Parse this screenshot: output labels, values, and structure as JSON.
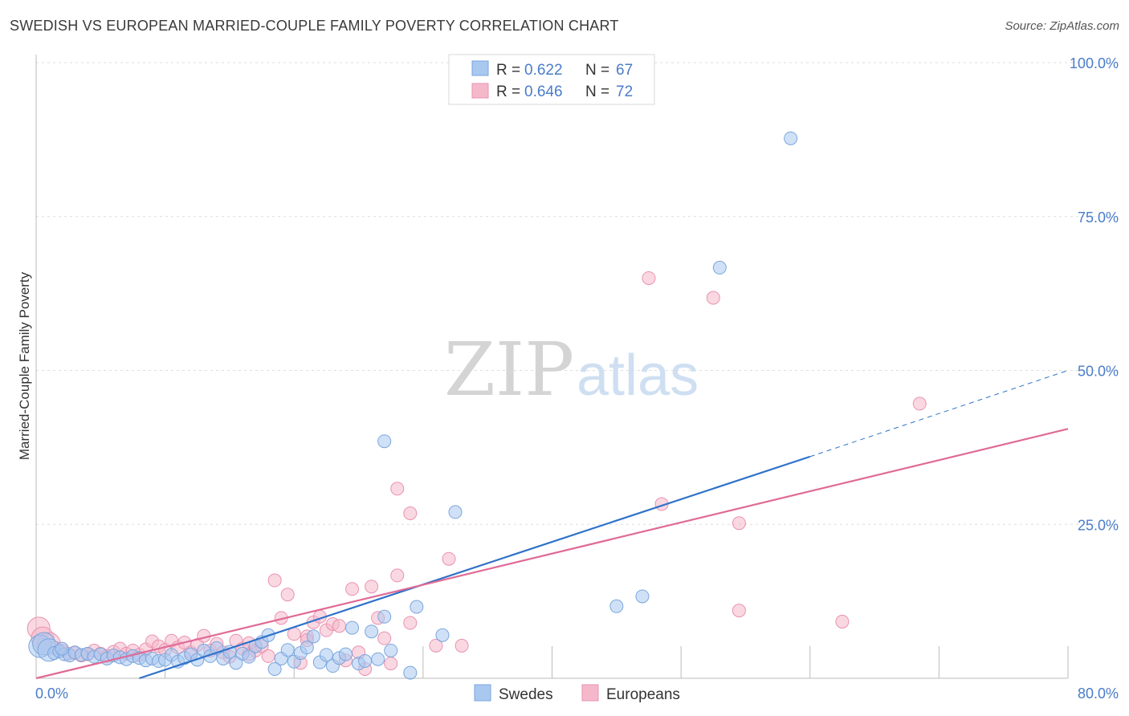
{
  "title": "SWEDISH VS EUROPEAN MARRIED-COUPLE FAMILY POVERTY CORRELATION CHART",
  "source": "Source: ZipAtlas.com",
  "watermark": {
    "zip": "ZIP",
    "atlas": "atlas"
  },
  "legend": {
    "swedes": {
      "r_label": "R =",
      "r_value": "0.622",
      "n_label": "N =",
      "n_value": "67"
    },
    "europeans": {
      "r_label": "R =",
      "r_value": "0.646",
      "n_label": "N =",
      "n_value": "72"
    }
  },
  "colors": {
    "swedes": "#a9c8f0",
    "swedes_line": "#2f72c9",
    "europeans": "#f5b8cb",
    "europeans_line": "#e06a96",
    "tick": "#4a7cc9"
  },
  "chart_data": {
    "type": "scatter",
    "title": "SWEDISH VS EUROPEAN MARRIED-COUPLE FAMILY POVERTY CORRELATION CHART",
    "xlabel": "",
    "ylabel": "Married-Couple Family Poverty",
    "xlim": [
      0,
      80
    ],
    "ylim": [
      0,
      100
    ],
    "x_tick_labels": [
      "0.0%",
      "80.0%"
    ],
    "y_ticks": [
      25,
      50,
      75,
      100
    ],
    "y_tick_labels": [
      "25.0%",
      "50.0%",
      "75.0%",
      "100.0%"
    ],
    "grid": true,
    "legend_position": "top-center",
    "series": [
      {
        "name": "Swedes",
        "points": [
          [
            0.3,
            5.2
          ],
          [
            0.6,
            5.6
          ],
          [
            1.0,
            4.6
          ],
          [
            1.4,
            4.1
          ],
          [
            1.8,
            4.4
          ],
          [
            2.2,
            3.9
          ],
          [
            2.6,
            3.7
          ],
          [
            3.0,
            4.2
          ],
          [
            3.5,
            3.8
          ],
          [
            4.0,
            4.0
          ],
          [
            4.5,
            3.5
          ],
          [
            5.0,
            3.9
          ],
          [
            5.5,
            3.2
          ],
          [
            6.0,
            3.7
          ],
          [
            6.5,
            3.4
          ],
          [
            7.0,
            3.1
          ],
          [
            7.5,
            3.6
          ],
          [
            8.0,
            3.3
          ],
          [
            8.5,
            2.9
          ],
          [
            9.0,
            3.2
          ],
          [
            9.5,
            2.8
          ],
          [
            10.0,
            3.0
          ],
          [
            10.5,
            3.8
          ],
          [
            11.0,
            2.7
          ],
          [
            11.5,
            3.3
          ],
          [
            12.0,
            3.9
          ],
          [
            12.5,
            3.0
          ],
          [
            13.0,
            4.5
          ],
          [
            13.5,
            3.6
          ],
          [
            14.0,
            4.9
          ],
          [
            14.5,
            3.2
          ],
          [
            15.0,
            4.3
          ],
          [
            15.5,
            2.5
          ],
          [
            16.0,
            4.0
          ],
          [
            16.5,
            3.5
          ],
          [
            17.0,
            5.2
          ],
          [
            17.5,
            5.9
          ],
          [
            18.0,
            7.0
          ],
          [
            18.5,
            1.5
          ],
          [
            19.0,
            3.2
          ],
          [
            19.5,
            4.6
          ],
          [
            20.0,
            2.7
          ],
          [
            20.5,
            4.1
          ],
          [
            21.0,
            5.0
          ],
          [
            21.5,
            6.8
          ],
          [
            22.0,
            2.6
          ],
          [
            22.5,
            3.8
          ],
          [
            23.0,
            2.0
          ],
          [
            23.5,
            3.3
          ],
          [
            24.0,
            3.9
          ],
          [
            24.5,
            8.2
          ],
          [
            25.0,
            2.4
          ],
          [
            25.5,
            2.8
          ],
          [
            26.0,
            7.6
          ],
          [
            26.5,
            3.1
          ],
          [
            27.0,
            10.0
          ],
          [
            27.5,
            4.5
          ],
          [
            29.0,
            0.9
          ],
          [
            29.5,
            11.6
          ],
          [
            31.5,
            7.0
          ],
          [
            32.5,
            27.0
          ],
          [
            27.0,
            38.5
          ],
          [
            45.0,
            11.7
          ],
          [
            47.0,
            13.3
          ],
          [
            53.0,
            66.7
          ],
          [
            58.5,
            87.7
          ],
          [
            2.0,
            4.8
          ]
        ]
      },
      {
        "name": "Europeans",
        "points": [
          [
            0.2,
            8.1
          ],
          [
            0.5,
            6.5
          ],
          [
            1.0,
            5.6
          ],
          [
            1.5,
            4.9
          ],
          [
            2.0,
            4.5
          ],
          [
            2.5,
            4.0
          ],
          [
            3.0,
            4.1
          ],
          [
            3.5,
            3.7
          ],
          [
            4.0,
            3.9
          ],
          [
            4.5,
            4.5
          ],
          [
            5.0,
            4.0
          ],
          [
            5.5,
            3.6
          ],
          [
            6.0,
            4.3
          ],
          [
            6.5,
            4.8
          ],
          [
            7.0,
            4.0
          ],
          [
            7.5,
            4.5
          ],
          [
            8.0,
            3.8
          ],
          [
            8.5,
            4.7
          ],
          [
            9.0,
            6.0
          ],
          [
            9.5,
            5.2
          ],
          [
            10.0,
            4.6
          ],
          [
            10.5,
            6.1
          ],
          [
            11.0,
            5.0
          ],
          [
            11.5,
            5.8
          ],
          [
            12.0,
            4.2
          ],
          [
            12.5,
            5.4
          ],
          [
            13.0,
            6.9
          ],
          [
            13.5,
            4.5
          ],
          [
            14.0,
            5.6
          ],
          [
            14.5,
            4.2
          ],
          [
            15.0,
            3.5
          ],
          [
            15.5,
            6.1
          ],
          [
            16.0,
            4.8
          ],
          [
            16.5,
            5.7
          ],
          [
            17.0,
            4.5
          ],
          [
            17.5,
            5.2
          ],
          [
            18.0,
            3.6
          ],
          [
            18.5,
            15.9
          ],
          [
            19.0,
            9.8
          ],
          [
            19.5,
            13.6
          ],
          [
            20.0,
            7.2
          ],
          [
            20.5,
            2.5
          ],
          [
            21.0,
            6.8
          ],
          [
            21.5,
            9.1
          ],
          [
            22.0,
            10.0
          ],
          [
            22.5,
            7.8
          ],
          [
            23.0,
            8.8
          ],
          [
            23.5,
            8.5
          ],
          [
            24.0,
            2.9
          ],
          [
            24.5,
            14.5
          ],
          [
            25.0,
            4.2
          ],
          [
            25.5,
            1.5
          ],
          [
            26.0,
            14.9
          ],
          [
            26.5,
            9.8
          ],
          [
            27.0,
            6.5
          ],
          [
            27.5,
            2.4
          ],
          [
            28.0,
            16.7
          ],
          [
            29.0,
            9.0
          ],
          [
            28.0,
            30.8
          ],
          [
            29.0,
            26.8
          ],
          [
            31.0,
            5.3
          ],
          [
            32.0,
            19.4
          ],
          [
            33.0,
            5.3
          ],
          [
            47.5,
            65.0
          ],
          [
            48.5,
            28.3
          ],
          [
            52.5,
            61.8
          ],
          [
            54.5,
            25.2
          ],
          [
            54.5,
            11.0
          ],
          [
            62.5,
            9.2
          ],
          [
            68.5,
            44.6
          ],
          [
            16.5,
            3.9
          ],
          [
            21.0,
            6.2
          ]
        ]
      }
    ],
    "trend_lines": [
      {
        "name": "Swedes",
        "from": [
          8,
          0
        ],
        "to": [
          60,
          36
        ],
        "dashed_to": [
          80,
          50
        ]
      },
      {
        "name": "Europeans",
        "from": [
          0,
          0
        ],
        "to": [
          80,
          40.5
        ]
      }
    ]
  },
  "bottom_legend": {
    "swedes": "Swedes",
    "europeans": "Europeans"
  }
}
